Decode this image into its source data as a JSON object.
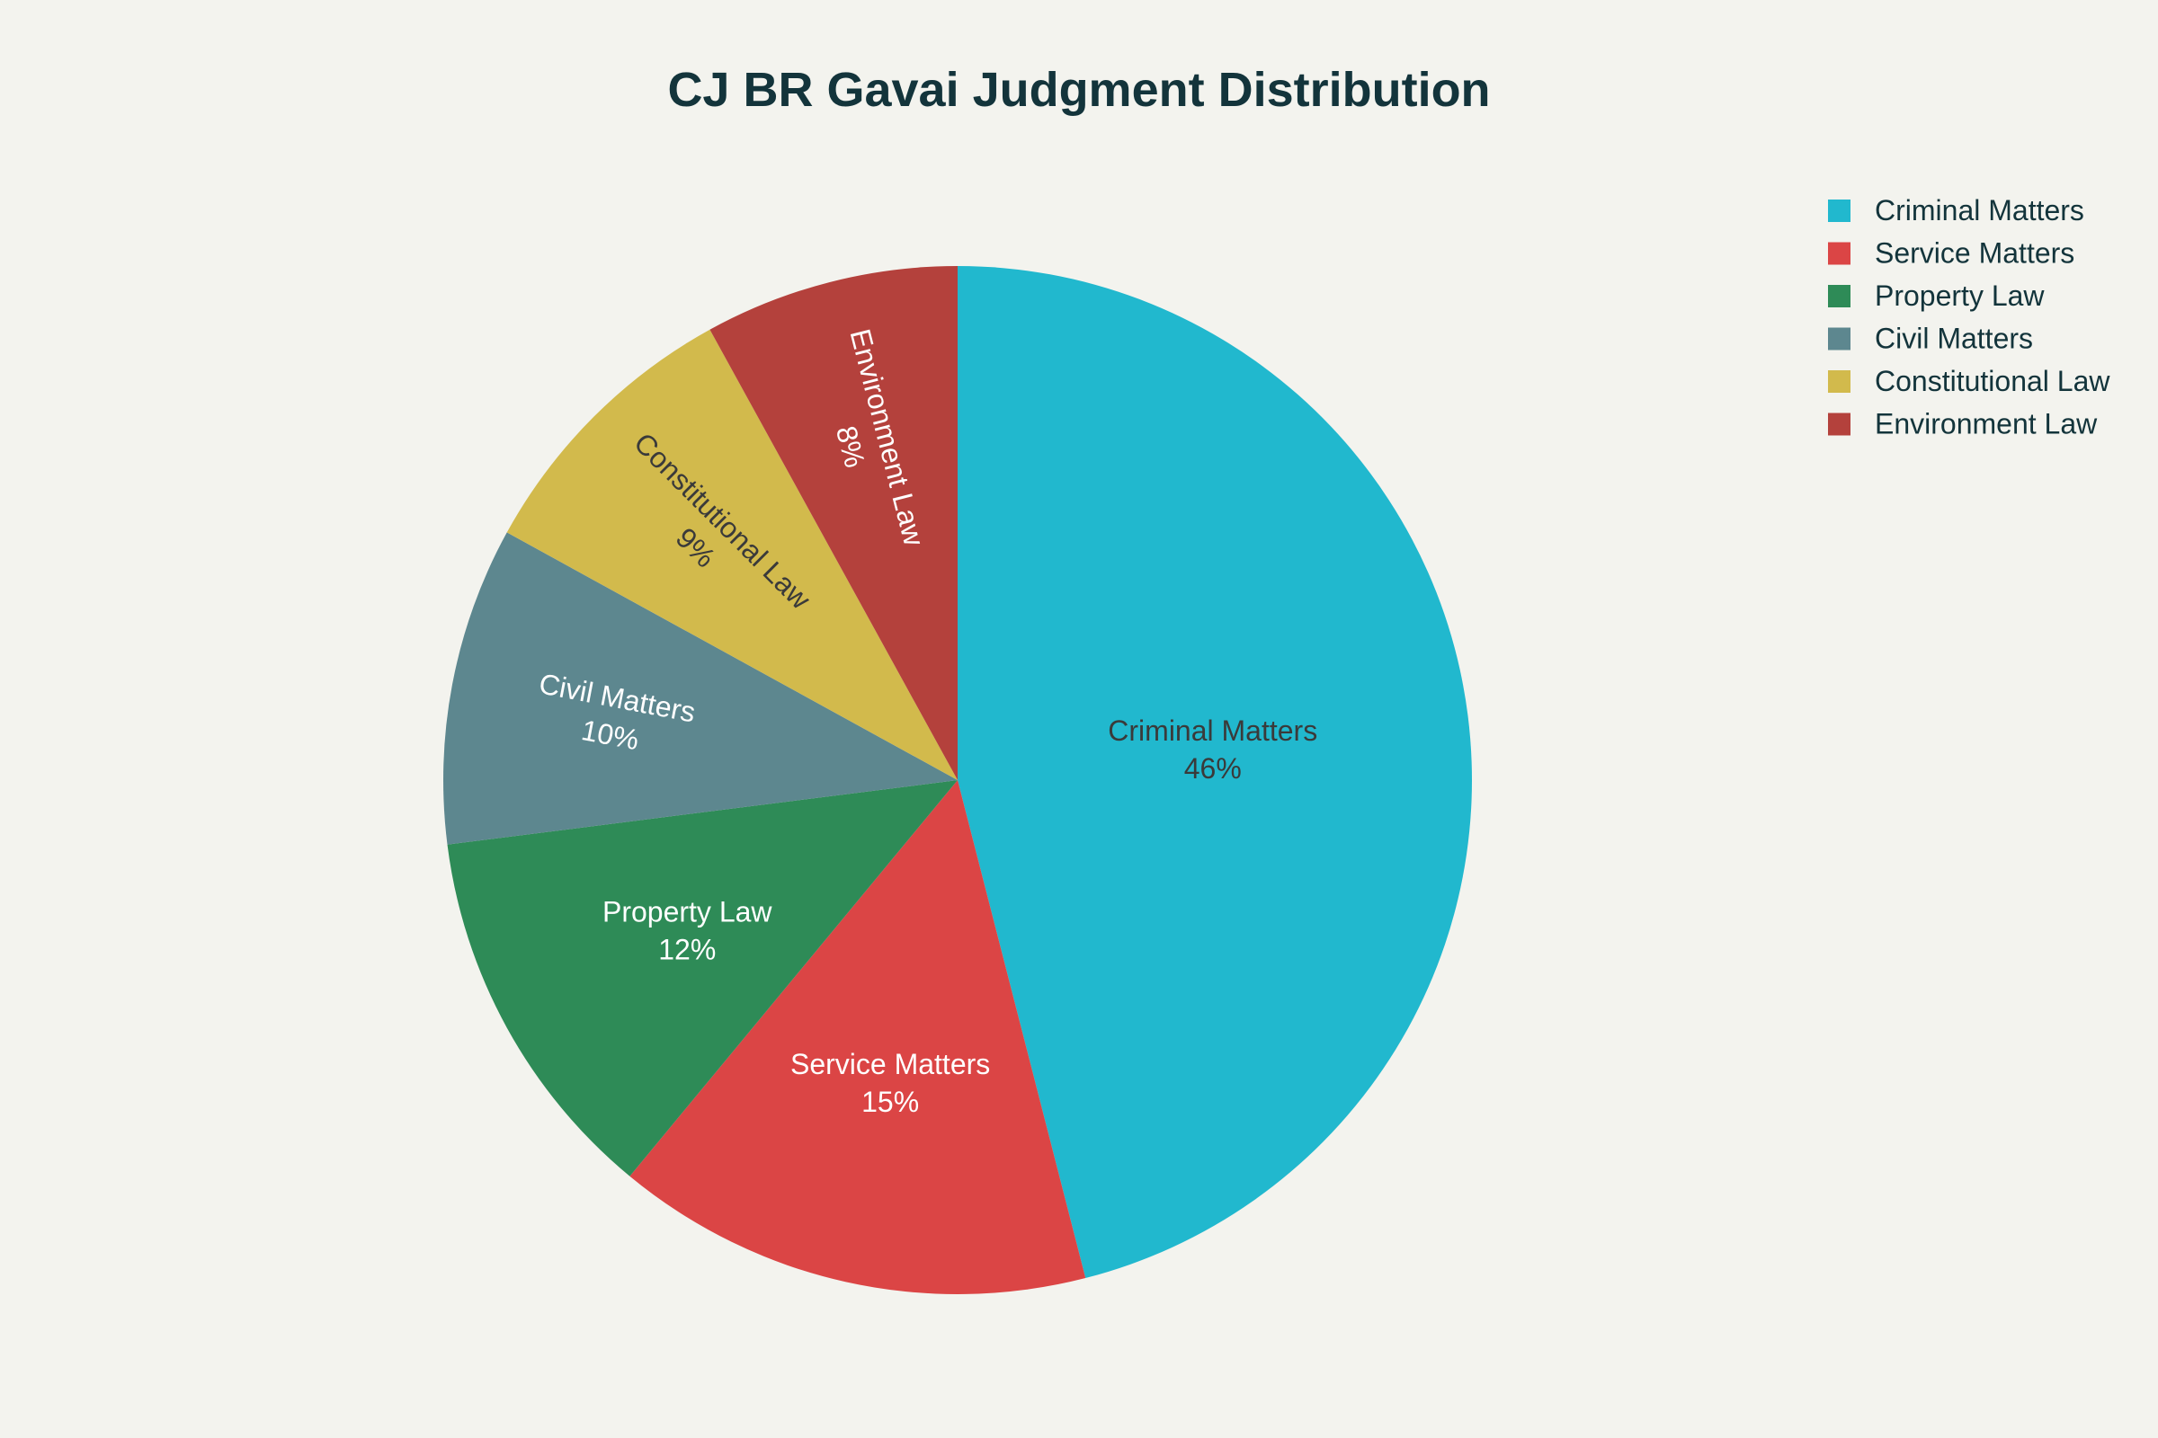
{
  "chart_data": {
    "type": "pie",
    "title": "CJ BR Gavai Judgment Distribution",
    "categories": [
      "Criminal Matters",
      "Service Matters",
      "Property Law",
      "Civil Matters",
      "Constitutional Law",
      "Environment Law"
    ],
    "values": [
      46,
      15,
      12,
      10,
      9,
      8
    ],
    "value_labels": [
      "46%",
      "15%",
      "12%",
      "10%",
      "9%",
      "8%"
    ],
    "colors": [
      "#21b8ce",
      "#db4545",
      "#2e8b57",
      "#5d878f",
      "#d2ba4c",
      "#b4413c"
    ],
    "label_colors": [
      "#3a3a3a",
      "#ffffff",
      "#ffffff",
      "#ffffff",
      "#3a3a3a",
      "#ffffff"
    ],
    "direction": "clockwise from top",
    "legend_position": "top-right"
  }
}
